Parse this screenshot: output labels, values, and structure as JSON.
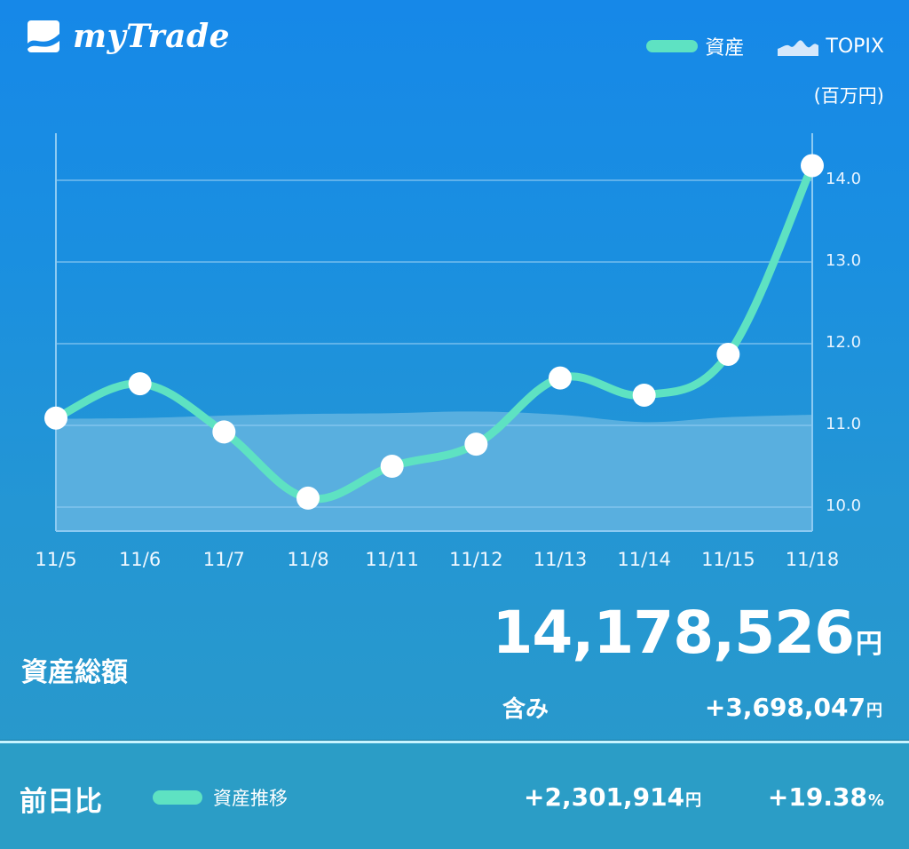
{
  "header": {
    "app_name": "myTrade",
    "logo_icon": "wave-chart-logo-icon",
    "legend": [
      {
        "label": "資産",
        "icon": "line-swatch-icon",
        "color": "#5ee2c2"
      },
      {
        "label": "TOPIX",
        "icon": "mountain-area-icon",
        "color": "#d6e8fb"
      }
    ],
    "unit": "(百万円)"
  },
  "colors": {
    "background_top": "#1688e8",
    "background_bottom": "#2a9ac8",
    "asset_line": "#5ee2c2",
    "topix_area": "#63b4e0",
    "marker": "#ffffff",
    "gridline": "#8ccaf2"
  },
  "chart_data": {
    "type": "line",
    "title": "",
    "xlabel": "",
    "ylabel": "(百万円)",
    "categories": [
      "11/5",
      "11/6",
      "11/7",
      "11/8",
      "11/11",
      "11/12",
      "11/13",
      "11/14",
      "11/15",
      "11/18"
    ],
    "series": [
      {
        "name": "資産",
        "type": "line",
        "values": [
          11.09,
          11.51,
          10.92,
          10.11,
          10.5,
          10.77,
          11.58,
          11.37,
          11.87,
          14.18
        ]
      },
      {
        "name": "TOPIX",
        "type": "area",
        "values": [
          11.08,
          11.09,
          11.12,
          11.14,
          11.15,
          11.17,
          11.13,
          11.04,
          11.1,
          11.13
        ]
      }
    ],
    "y_ticks": [
      "10.0",
      "11.0",
      "12.0",
      "13.0",
      "14.0"
    ],
    "ylim": [
      9.7,
      14.6
    ],
    "y_axis_position": "right",
    "grid": true,
    "legend_position": "top-right"
  },
  "summary": {
    "total_label": "資産総額",
    "total_value": "14,178,526",
    "total_unit": "円",
    "included_label": "含み",
    "included_value": "+3,698,047",
    "included_unit": "円"
  },
  "daily": {
    "label": "前日比",
    "legend_label": "資産推移",
    "change_value": "+2,301,914",
    "change_unit": "円",
    "change_pct": "+19.38",
    "pct_unit": "%"
  }
}
